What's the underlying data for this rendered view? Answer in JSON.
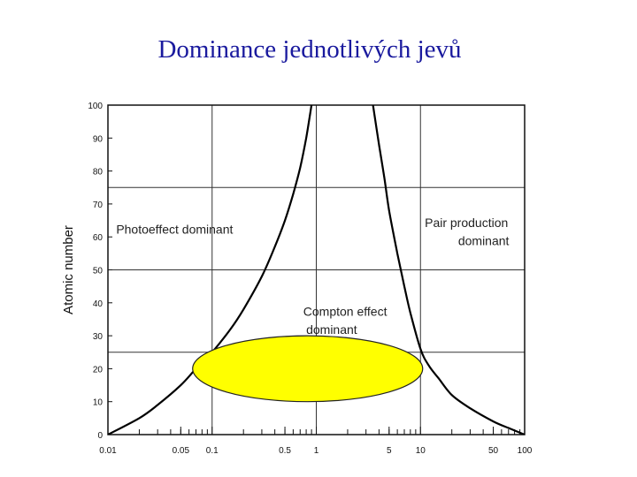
{
  "slide": {
    "title": "Dominance jednotlivých jevů"
  },
  "colors": {
    "title": "#1a1a9e",
    "highlight": "#ffff00",
    "curve": "#000000",
    "grid": "#333333"
  },
  "chart_data": {
    "type": "line",
    "title": "",
    "xlabel": "",
    "ylabel": "Atomic number",
    "x_scale": "log",
    "xlim": [
      0.01,
      100
    ],
    "ylim": [
      0,
      100
    ],
    "grid": true,
    "x_ticks": [
      {
        "value": 0.01,
        "label": "0.01"
      },
      {
        "value": 0.05,
        "label": "0.05"
      },
      {
        "value": 0.1,
        "label": "0.1"
      },
      {
        "value": 0.5,
        "label": "0.5"
      },
      {
        "value": 1,
        "label": "1"
      },
      {
        "value": 5,
        "label": "5"
      },
      {
        "value": 10,
        "label": "10"
      },
      {
        "value": 50,
        "label": "50"
      },
      {
        "value": 100,
        "label": "100"
      }
    ],
    "y_ticks": [
      {
        "value": 0,
        "label": "0"
      },
      {
        "value": 10,
        "label": "10"
      },
      {
        "value": 20,
        "label": "20"
      },
      {
        "value": 30,
        "label": "30"
      },
      {
        "value": 40,
        "label": "40"
      },
      {
        "value": 50,
        "label": "50"
      },
      {
        "value": 60,
        "label": "60"
      },
      {
        "value": 70,
        "label": "70"
      },
      {
        "value": 80,
        "label": "80"
      },
      {
        "value": 90,
        "label": "90"
      },
      {
        "value": 100,
        "label": "100"
      }
    ],
    "x_gridlines": [
      0.1,
      1,
      10
    ],
    "y_gridlines": [
      25,
      50,
      75
    ],
    "series": [
      {
        "x": [
          0.01,
          0.02,
          0.03,
          0.05,
          0.07,
          0.1,
          0.15,
          0.2,
          0.3,
          0.4,
          0.5,
          0.6,
          0.7,
          0.8,
          0.9
        ],
        "y": [
          0,
          5,
          9,
          15,
          20,
          25,
          32,
          38,
          48,
          57,
          65,
          73,
          81,
          90,
          100
        ]
      },
      {
        "x": [
          3.5,
          4,
          4.5,
          5,
          6,
          7,
          8,
          10,
          12,
          15,
          20,
          30,
          50,
          70,
          100
        ],
        "y": [
          100,
          88,
          78,
          68,
          55,
          45,
          37,
          26,
          21,
          17,
          12,
          8,
          4,
          2,
          0
        ]
      }
    ],
    "annotations": [
      {
        "text": "Photoeffect dominant",
        "x": 0.012,
        "y": 61
      },
      {
        "text": "Pair production",
        "x": 11,
        "y": 63
      },
      {
        "text": "dominant",
        "x": 23,
        "y": 57.5
      },
      {
        "text": "Compton effect",
        "x": 0.75,
        "y": 36
      },
      {
        "text": "dominant",
        "x": 0.8,
        "y": 30.5
      }
    ],
    "highlight_ellipse": {
      "x_range": [
        0.065,
        10.5
      ],
      "y_range": [
        10,
        30
      ]
    }
  }
}
